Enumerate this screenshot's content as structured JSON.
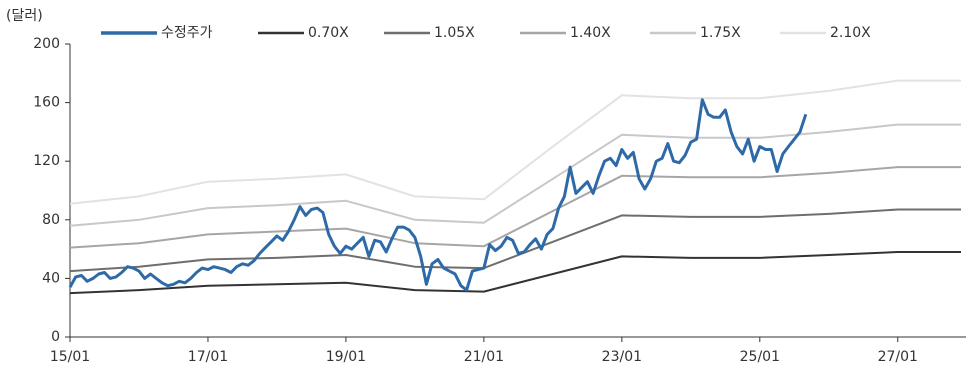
{
  "chart_data": {
    "type": "line",
    "y_label": "(달러)",
    "ylim": [
      0,
      200
    ],
    "yticks": [
      0,
      40,
      80,
      120,
      160,
      200
    ],
    "xlim": [
      "15/01",
      "27/12"
    ],
    "xticks": [
      "15/01",
      "17/01",
      "19/01",
      "21/01",
      "23/01",
      "25/01",
      "27/01"
    ],
    "series": [
      {
        "name": "수정주가",
        "color": "#2e6aa8",
        "width": 3,
        "x": [
          "15/01",
          "15/02",
          "15/03",
          "15/04",
          "15/05",
          "15/06",
          "15/07",
          "15/08",
          "15/09",
          "15/10",
          "15/11",
          "15/12",
          "16/01",
          "16/02",
          "16/03",
          "16/04",
          "16/05",
          "16/06",
          "16/07",
          "16/08",
          "16/09",
          "16/10",
          "16/11",
          "16/12",
          "17/01",
          "17/02",
          "17/03",
          "17/04",
          "17/05",
          "17/06",
          "17/07",
          "17/08",
          "17/09",
          "17/10",
          "17/11",
          "17/12",
          "18/01",
          "18/02",
          "18/03",
          "18/04",
          "18/05",
          "18/06",
          "18/07",
          "18/08",
          "18/09",
          "18/10",
          "18/11",
          "18/12",
          "19/01",
          "19/02",
          "19/03",
          "19/04",
          "19/05",
          "19/06",
          "19/07",
          "19/08",
          "19/09",
          "19/10",
          "19/11",
          "19/12",
          "20/01",
          "20/02",
          "20/03",
          "20/04",
          "20/05",
          "20/06",
          "20/07",
          "20/08",
          "20/09",
          "20/10",
          "20/11",
          "20/12",
          "21/01",
          "21/02",
          "21/03",
          "21/04",
          "21/05",
          "21/06",
          "21/07",
          "21/08",
          "21/09",
          "21/10",
          "21/11",
          "21/12",
          "22/01",
          "22/02",
          "22/03",
          "22/04",
          "22/05",
          "22/06",
          "22/07",
          "22/08",
          "22/09",
          "22/10",
          "22/11",
          "22/12",
          "23/01",
          "23/02",
          "23/03",
          "23/04",
          "23/05",
          "23/06",
          "23/07",
          "23/08",
          "23/09",
          "23/10",
          "23/11",
          "23/12",
          "24/01",
          "24/02",
          "24/03",
          "24/04",
          "24/05",
          "24/06",
          "24/07",
          "24/08",
          "24/09",
          "24/10",
          "24/11",
          "24/12",
          "25/01",
          "25/02",
          "25/03",
          "25/04",
          "25/05",
          "25/06",
          "25/07",
          "25/08",
          "25/09"
        ],
        "values": [
          34,
          41,
          42,
          38,
          40,
          43,
          44,
          40,
          41,
          44,
          48,
          47,
          45,
          40,
          43,
          40,
          37,
          35,
          36,
          38,
          37,
          40,
          44,
          47,
          46,
          48,
          47,
          46,
          44,
          48,
          50,
          49,
          52,
          57,
          61,
          65,
          69,
          66,
          72,
          80,
          89,
          83,
          87,
          88,
          85,
          70,
          62,
          57,
          62,
          60,
          64,
          68,
          55,
          66,
          65,
          58,
          67,
          75,
          75,
          73,
          68,
          55,
          36,
          50,
          53,
          47,
          45,
          43,
          35,
          32,
          45,
          46,
          47,
          63,
          59,
          62,
          68,
          66,
          57,
          58,
          63,
          67,
          60,
          70,
          74,
          88,
          96,
          116,
          98,
          102,
          106,
          98,
          110,
          120,
          122,
          117,
          128,
          122,
          126,
          108,
          101,
          108,
          120,
          122,
          132,
          120,
          119,
          124,
          133,
          135,
          162,
          152,
          150,
          150,
          155,
          140,
          130,
          125,
          135,
          120,
          130,
          128,
          128,
          113,
          125,
          130,
          135,
          140,
          152
        ]
      },
      {
        "name": "0.70X",
        "color": "#333333",
        "width": 2,
        "x": [
          "15/01",
          "16/01",
          "17/01",
          "18/01",
          "19/01",
          "20/01",
          "21/01",
          "22/01",
          "23/01",
          "24/01",
          "25/01",
          "26/01",
          "27/01",
          "27/12"
        ],
        "values": [
          30,
          32,
          35,
          36,
          37,
          32,
          31,
          43,
          55,
          54,
          54,
          56,
          58,
          58
        ]
      },
      {
        "name": "1.05X",
        "color": "#6e6e6e",
        "width": 2,
        "x": [
          "15/01",
          "16/01",
          "17/01",
          "18/01",
          "19/01",
          "20/01",
          "21/01",
          "22/01",
          "23/01",
          "24/01",
          "25/01",
          "26/01",
          "27/01",
          "27/12"
        ],
        "values": [
          45,
          48,
          53,
          54,
          56,
          48,
          47,
          65,
          83,
          82,
          82,
          84,
          87,
          87
        ]
      },
      {
        "name": "1.40X",
        "color": "#a6a6a6",
        "width": 2,
        "x": [
          "15/01",
          "16/01",
          "17/01",
          "18/01",
          "19/01",
          "20/01",
          "21/01",
          "22/01",
          "23/01",
          "24/01",
          "25/01",
          "26/01",
          "27/01",
          "27/12"
        ],
        "values": [
          61,
          64,
          70,
          72,
          74,
          64,
          62,
          86,
          110,
          109,
          109,
          112,
          116,
          116
        ]
      },
      {
        "name": "1.75X",
        "color": "#c8c8c8",
        "width": 2,
        "x": [
          "15/01",
          "16/01",
          "17/01",
          "18/01",
          "19/01",
          "20/01",
          "21/01",
          "22/01",
          "23/01",
          "24/01",
          "25/01",
          "26/01",
          "27/01",
          "27/12"
        ],
        "values": [
          76,
          80,
          88,
          90,
          93,
          80,
          78,
          108,
          138,
          136,
          136,
          140,
          145,
          145
        ]
      },
      {
        "name": "2.10X",
        "color": "#e2e2e2",
        "width": 2,
        "x": [
          "15/01",
          "16/01",
          "17/01",
          "18/01",
          "19/01",
          "20/01",
          "21/01",
          "22/01",
          "23/01",
          "24/01",
          "25/01",
          "26/01",
          "27/01",
          "27/12"
        ],
        "values": [
          91,
          96,
          106,
          108,
          111,
          96,
          94,
          130,
          165,
          163,
          163,
          168,
          175,
          175
        ]
      }
    ]
  }
}
